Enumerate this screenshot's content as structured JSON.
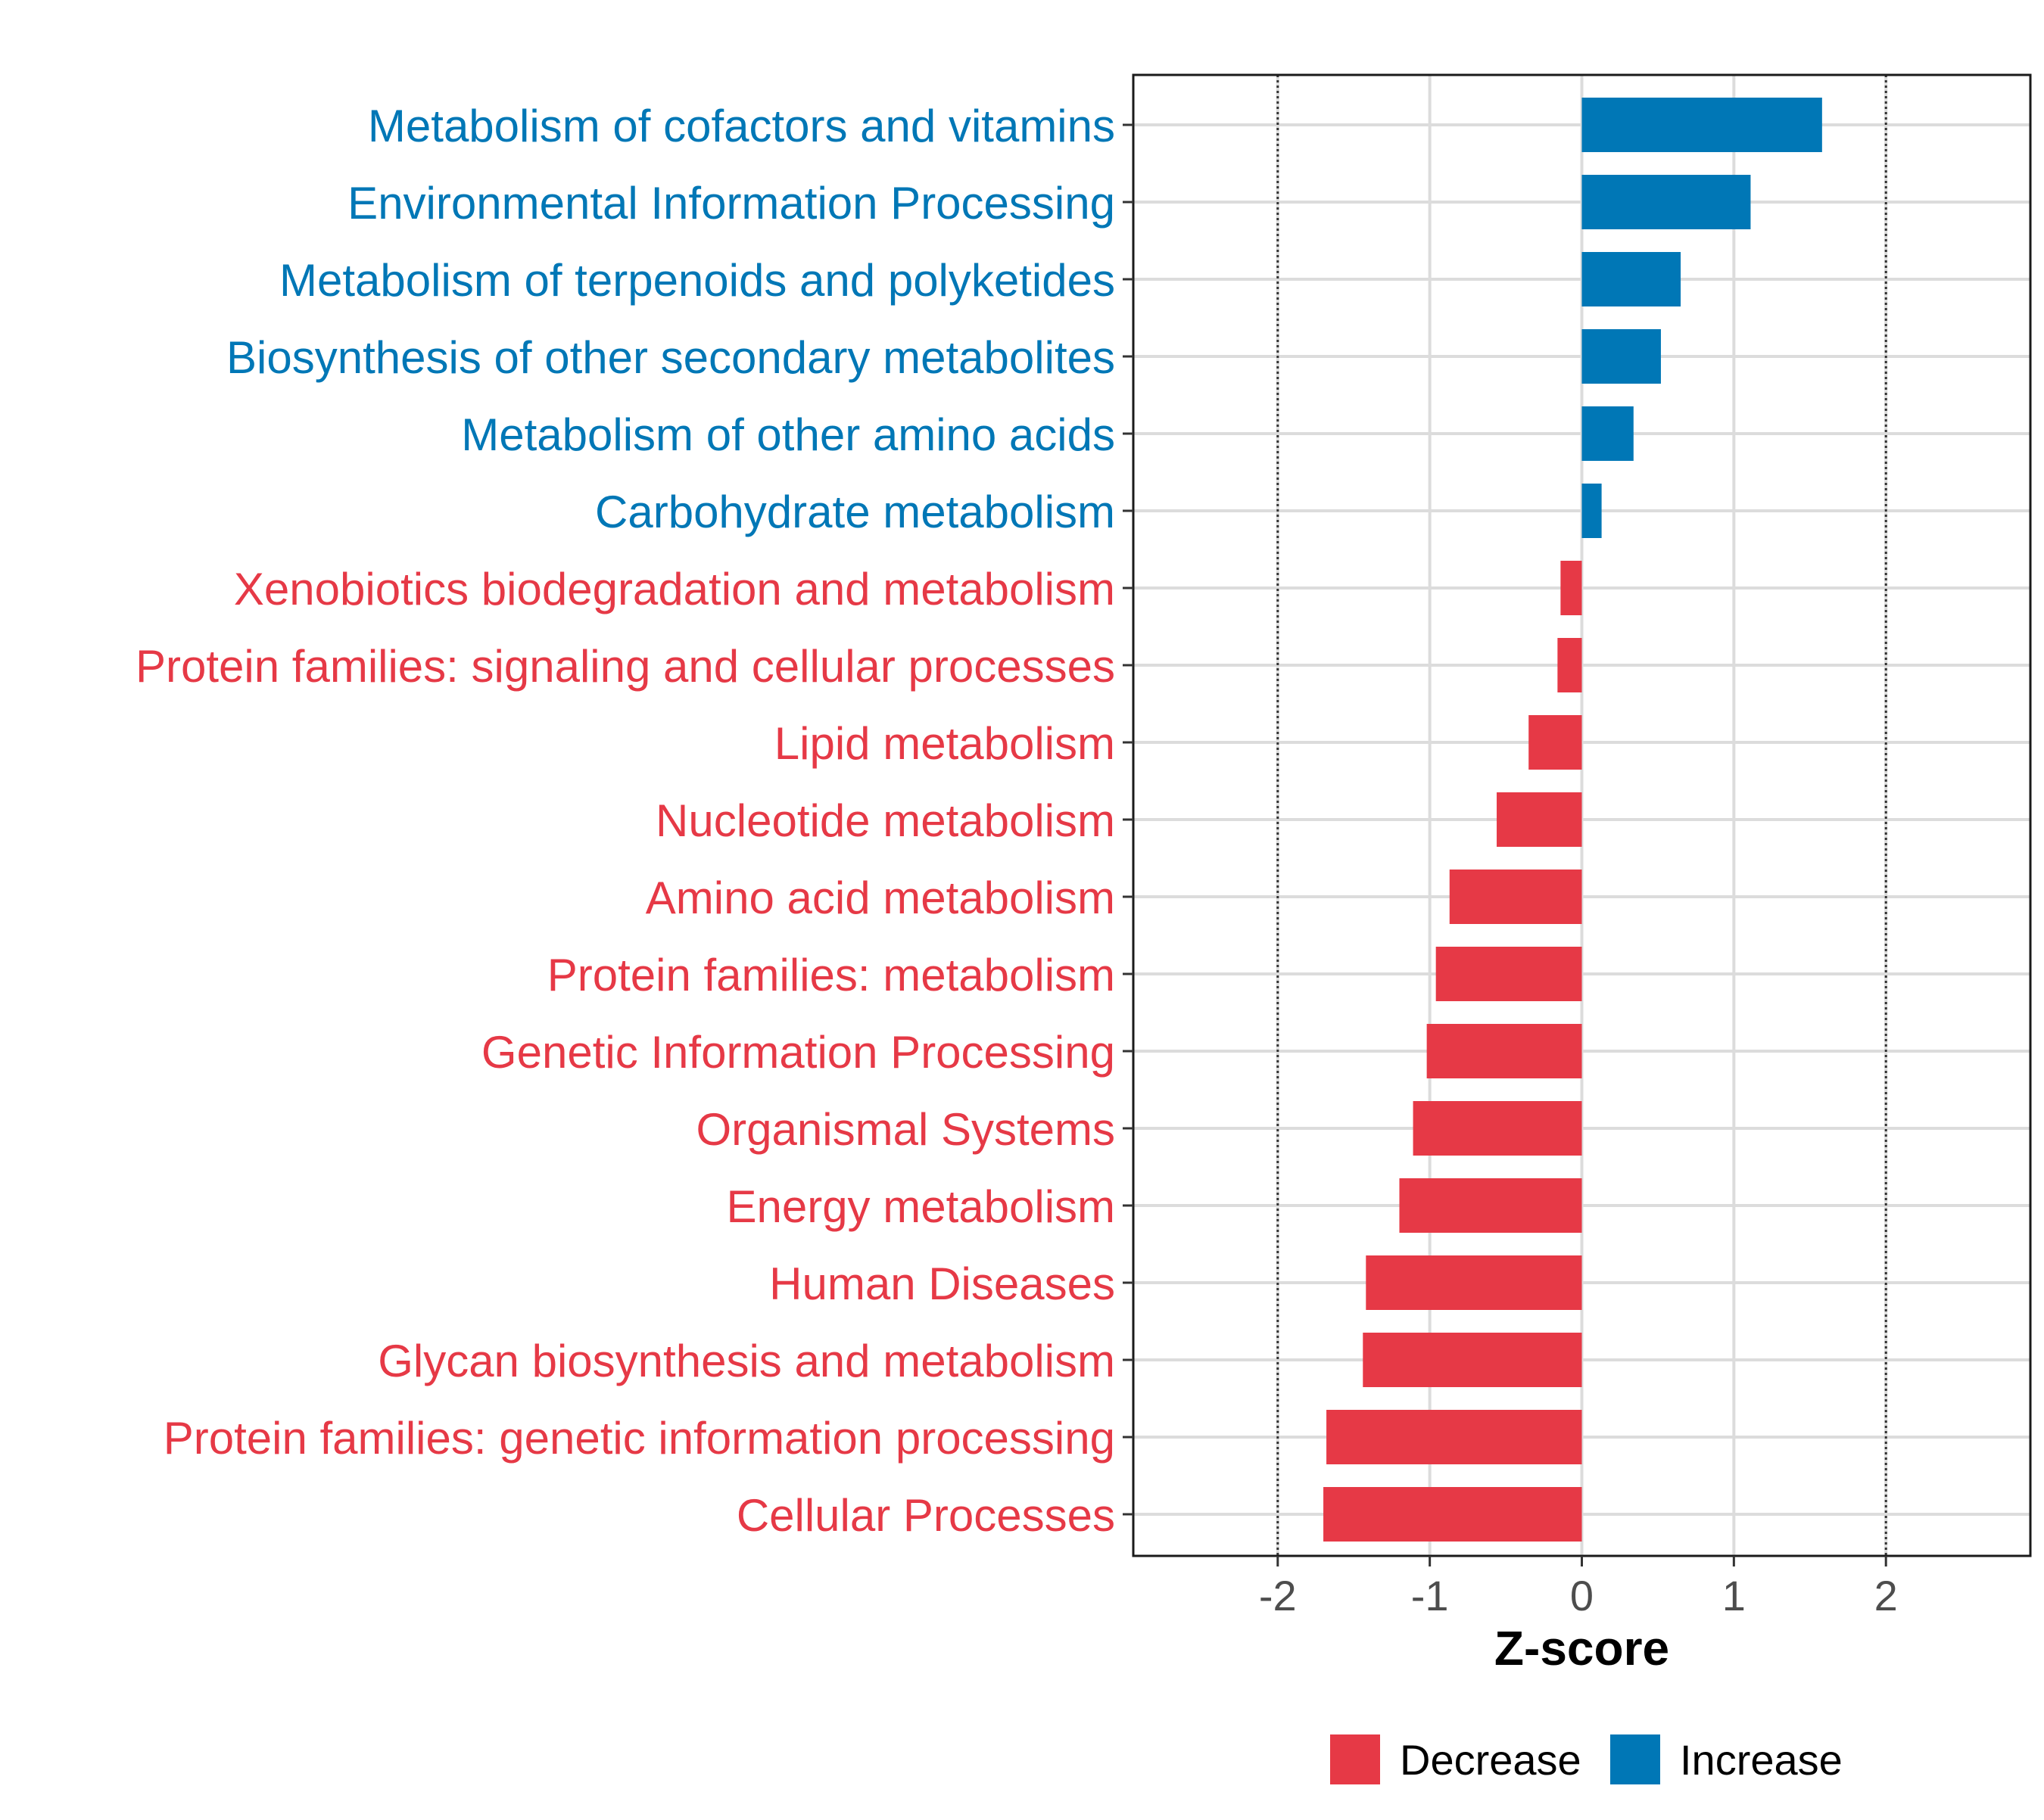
{
  "chart_data": {
    "type": "bar",
    "orientation": "horizontal",
    "xlabel": "Z-score",
    "ylabel": "",
    "xlim": [
      -2.95,
      2.95
    ],
    "xticks": [
      -2,
      -1,
      0,
      1,
      2
    ],
    "xtick_labels": [
      "-2",
      "-1",
      "0",
      "1",
      "2"
    ],
    "reference_lines": [
      -2,
      2
    ],
    "grid": true,
    "categories": [
      "Metabolism of cofactors and vitamins",
      "Environmental Information Processing",
      "Metabolism of terpenoids and polyketides",
      "Biosynthesis of other secondary metabolites",
      "Metabolism of other amino acids",
      "Carbohydrate metabolism",
      "Xenobiotics biodegradation and metabolism",
      "Protein families: signaling and cellular processes",
      "Lipid metabolism",
      "Nucleotide metabolism",
      "Amino acid metabolism",
      "Protein families: metabolism",
      "Genetic Information Processing",
      "Organismal Systems",
      "Energy metabolism",
      "Human Diseases",
      "Glycan biosynthesis and metabolism",
      "Protein families: genetic information processing",
      "Cellular Processes"
    ],
    "values": [
      1.58,
      1.11,
      0.65,
      0.52,
      0.34,
      0.13,
      -0.14,
      -0.16,
      -0.35,
      -0.56,
      -0.87,
      -0.96,
      -1.02,
      -1.11,
      -1.2,
      -1.42,
      -1.44,
      -1.68,
      -1.7
    ],
    "groups": [
      "Increase",
      "Increase",
      "Increase",
      "Increase",
      "Increase",
      "Increase",
      "Decrease",
      "Decrease",
      "Decrease",
      "Decrease",
      "Decrease",
      "Decrease",
      "Decrease",
      "Decrease",
      "Decrease",
      "Decrease",
      "Decrease",
      "Decrease",
      "Decrease"
    ],
    "legend": {
      "position": "bottom",
      "entries": [
        {
          "label": "Decrease",
          "color": "#E63946"
        },
        {
          "label": "Increase",
          "color": "#0077B6"
        }
      ]
    },
    "colors": {
      "Decrease": "#E63946",
      "Increase": "#0077B6"
    }
  }
}
